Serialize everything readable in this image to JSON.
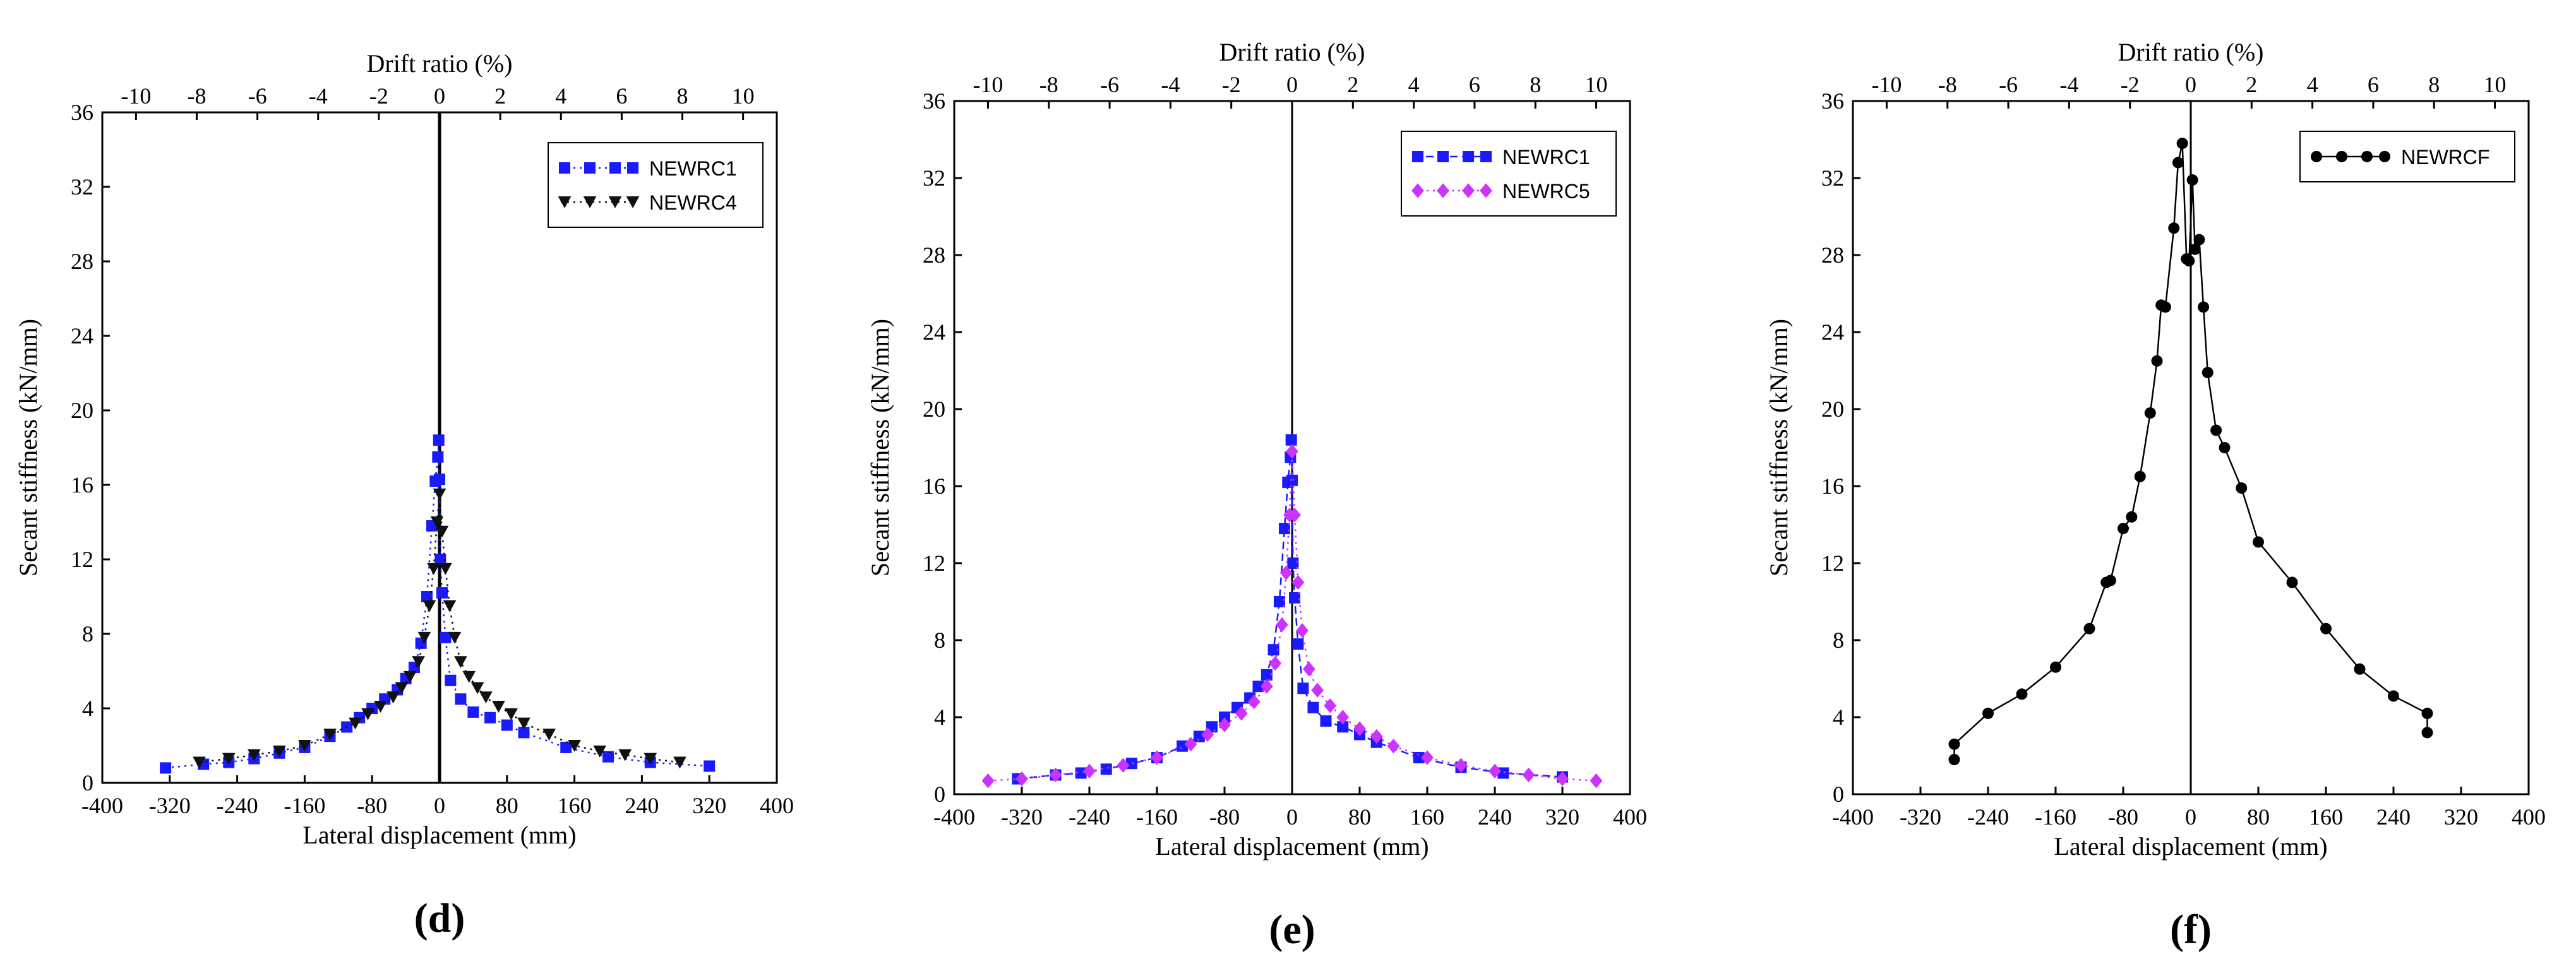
{
  "figure": {
    "panel_labels": [
      "(d)",
      "(e)",
      "(f)"
    ]
  },
  "chart_data": [
    {
      "type": "scatter",
      "panel": "(d)",
      "title": "",
      "xlabel": "Lateral displacement (mm)",
      "ylabel": "Secant stiffness (kN/mm)",
      "top_xlabel": "Drift ratio (%)",
      "xlim": [
        -400,
        400
      ],
      "ylim": [
        0,
        36
      ],
      "top_xlim": [
        -11.11,
        11.11
      ],
      "xticks": [
        "-400",
        "-320",
        "-240",
        "-160",
        "-80",
        "0",
        "80",
        "160",
        "240",
        "320",
        "400"
      ],
      "yticks": [
        "0",
        "4",
        "8",
        "12",
        "16",
        "20",
        "24",
        "28",
        "32",
        "36"
      ],
      "top_xticks": [
        "-10",
        "-8",
        "-6",
        "-4",
        "-2",
        "0",
        "2",
        "4",
        "6",
        "8",
        "10"
      ],
      "grid": false,
      "legend_position": "top-right",
      "series": [
        {
          "name": "NEWRC1",
          "color": "#1a1aff",
          "marker": "square",
          "line": "dotted",
          "x": [
            -325,
            -280,
            -250,
            -220,
            -190,
            -160,
            -130,
            -110,
            -95,
            -80,
            -65,
            -50,
            -40,
            -30,
            -22,
            -15,
            -9,
            -5,
            -2,
            -1,
            0,
            1,
            3,
            7,
            13,
            25,
            40,
            60,
            80,
            100,
            150,
            200,
            250,
            320
          ],
          "y": [
            0.8,
            1.0,
            1.1,
            1.3,
            1.6,
            1.9,
            2.5,
            3.0,
            3.5,
            4.0,
            4.5,
            5.0,
            5.6,
            6.2,
            7.5,
            10.0,
            13.8,
            16.2,
            17.5,
            18.4,
            16.3,
            12.0,
            10.2,
            7.8,
            5.5,
            4.5,
            3.8,
            3.5,
            3.1,
            2.7,
            1.9,
            1.4,
            1.1,
            0.9
          ]
        },
        {
          "name": "NEWRC4",
          "color": "#111111",
          "marker": "triangle-down",
          "line": "dotted",
          "x": [
            -285,
            -250,
            -220,
            -190,
            -160,
            -130,
            -100,
            -85,
            -70,
            -55,
            -45,
            -35,
            -25,
            -18,
            -12,
            -7,
            -3,
            0,
            3,
            7,
            12,
            18,
            25,
            35,
            45,
            55,
            70,
            85,
            100,
            130,
            160,
            190,
            220,
            250,
            285
          ],
          "y": [
            1.1,
            1.3,
            1.5,
            1.7,
            2.0,
            2.6,
            3.2,
            3.7,
            4.1,
            4.6,
            5.1,
            5.7,
            6.5,
            7.8,
            9.5,
            11.5,
            14.0,
            15.5,
            13.5,
            11.5,
            9.5,
            7.8,
            6.5,
            5.7,
            5.1,
            4.6,
            4.1,
            3.7,
            3.2,
            2.6,
            2.0,
            1.7,
            1.5,
            1.3,
            1.1
          ]
        }
      ]
    },
    {
      "type": "scatter",
      "panel": "(e)",
      "title": "",
      "xlabel": "Lateral displacement (mm)",
      "ylabel": "Secant stiffness (kN/mm)",
      "top_xlabel": "Drift ratio (%)",
      "xlim": [
        -400,
        400
      ],
      "ylim": [
        0,
        36
      ],
      "top_xlim": [
        -11.11,
        11.11
      ],
      "xticks": [
        "-400",
        "-320",
        "-240",
        "-160",
        "-80",
        "0",
        "80",
        "160",
        "240",
        "320",
        "400"
      ],
      "yticks": [
        "0",
        "4",
        "8",
        "12",
        "16",
        "20",
        "24",
        "28",
        "32",
        "36"
      ],
      "top_xticks": [
        "-10",
        "-8",
        "-6",
        "-4",
        "-2",
        "0",
        "2",
        "4",
        "6",
        "8",
        "10"
      ],
      "grid": false,
      "legend_position": "top-right",
      "series": [
        {
          "name": "NEWRC1",
          "color": "#1a1aff",
          "marker": "square",
          "line": "dashed",
          "x": [
            -325,
            -280,
            -250,
            -220,
            -190,
            -160,
            -130,
            -110,
            -95,
            -80,
            -65,
            -50,
            -40,
            -30,
            -22,
            -15,
            -9,
            -5,
            -2,
            -1,
            0,
            1,
            3,
            7,
            13,
            25,
            40,
            60,
            80,
            100,
            150,
            200,
            250,
            320
          ],
          "y": [
            0.8,
            1.0,
            1.1,
            1.3,
            1.6,
            1.9,
            2.5,
            3.0,
            3.5,
            4.0,
            4.5,
            5.0,
            5.6,
            6.2,
            7.5,
            10.0,
            13.8,
            16.2,
            17.5,
            18.4,
            16.3,
            12.0,
            10.2,
            7.8,
            5.5,
            4.5,
            3.8,
            3.5,
            3.1,
            2.7,
            1.9,
            1.4,
            1.1,
            0.9
          ]
        },
        {
          "name": "NEWRC5",
          "color": "#cc33ff",
          "marker": "diamond",
          "line": "dotted",
          "x": [
            -360,
            -320,
            -280,
            -240,
            -200,
            -160,
            -120,
            -100,
            -80,
            -60,
            -45,
            -30,
            -20,
            -12,
            -7,
            -3,
            0,
            3,
            7,
            12,
            20,
            30,
            45,
            60,
            80,
            100,
            120,
            160,
            200,
            240,
            280,
            320,
            360
          ],
          "y": [
            0.7,
            0.8,
            1.0,
            1.2,
            1.5,
            1.9,
            2.6,
            3.1,
            3.6,
            4.2,
            4.8,
            5.6,
            6.8,
            8.8,
            11.5,
            14.5,
            17.8,
            14.5,
            11.0,
            8.5,
            6.5,
            5.4,
            4.6,
            4.0,
            3.4,
            3.0,
            2.5,
            1.9,
            1.5,
            1.2,
            1.0,
            0.8,
            0.7
          ]
        }
      ]
    },
    {
      "type": "line",
      "panel": "(f)",
      "title": "",
      "xlabel": "Lateral displacement (mm)",
      "ylabel": "Secant stiffness (kN/mm)",
      "top_xlabel": "Drift ratio (%)",
      "xlim": [
        -400,
        400
      ],
      "ylim": [
        0,
        36
      ],
      "top_xlim": [
        -11.11,
        11.11
      ],
      "xticks": [
        "-400",
        "-320",
        "-240",
        "-160",
        "-80",
        "0",
        "80",
        "160",
        "240",
        "320",
        "400"
      ],
      "yticks": [
        "0",
        "4",
        "8",
        "12",
        "16",
        "20",
        "24",
        "28",
        "32",
        "36"
      ],
      "top_xticks": [
        "-10",
        "-8",
        "-6",
        "-4",
        "-2",
        "0",
        "2",
        "4",
        "6",
        "8",
        "10"
      ],
      "grid": false,
      "legend_position": "top-right",
      "series": [
        {
          "name": "NEWRCF",
          "color": "#000000",
          "marker": "circle",
          "line": "solid",
          "x": [
            -280,
            -280,
            -240,
            -200,
            -160,
            -120,
            -100,
            -95,
            -80,
            -70,
            -60,
            -48,
            -40,
            -35,
            -30,
            -20,
            -15,
            -10,
            -5,
            -2,
            2,
            5,
            10,
            15,
            20,
            30,
            40,
            60,
            80,
            120,
            160,
            200,
            240,
            280,
            280
          ],
          "y": [
            1.8,
            2.6,
            4.2,
            5.2,
            6.6,
            8.6,
            11.0,
            11.1,
            13.8,
            14.4,
            16.5,
            19.8,
            22.5,
            25.4,
            25.3,
            29.4,
            32.8,
            33.8,
            27.8,
            27.7,
            31.9,
            28.3,
            28.8,
            25.3,
            21.9,
            18.9,
            18.0,
            15.9,
            13.1,
            11.0,
            8.6,
            6.5,
            5.1,
            4.2,
            3.2
          ]
        }
      ]
    }
  ]
}
